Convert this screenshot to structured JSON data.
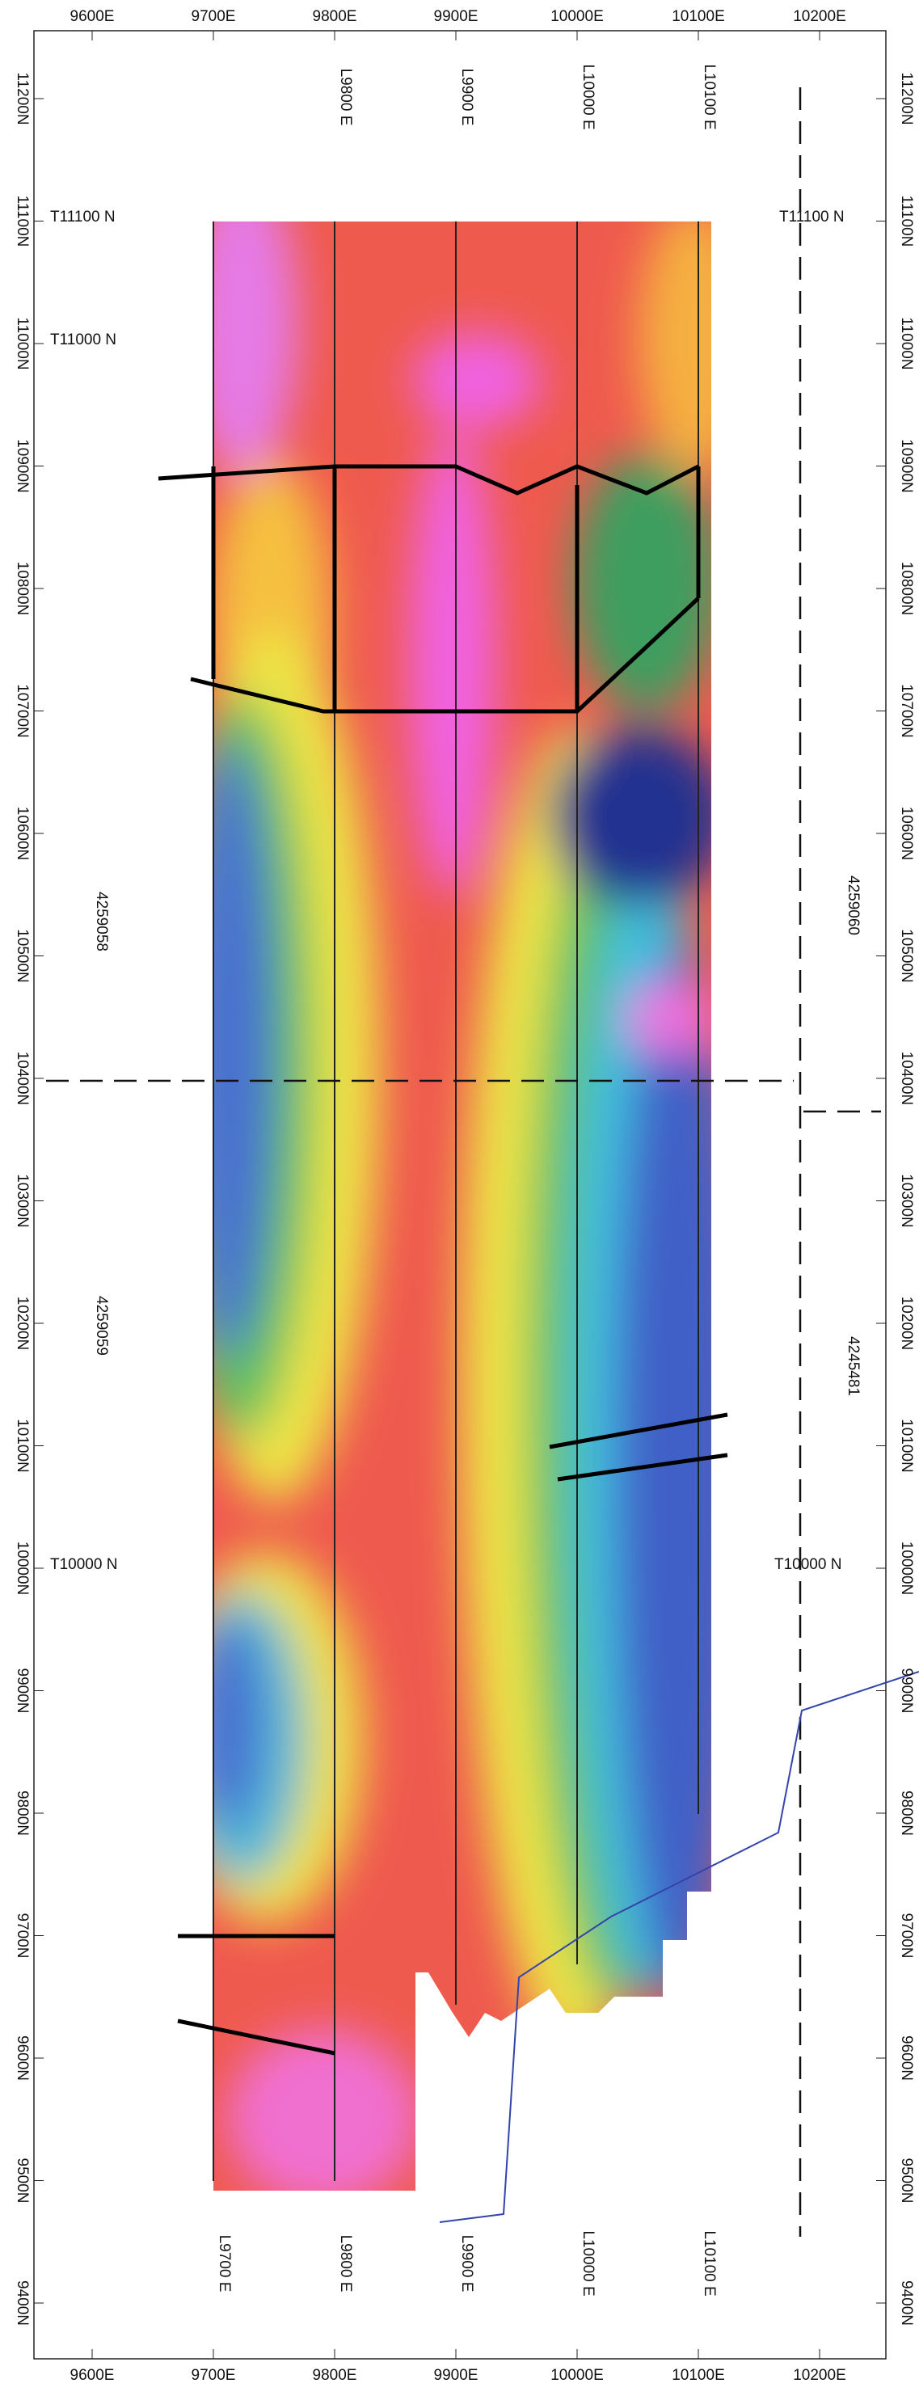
{
  "map": {
    "easting_labels": [
      "9600E",
      "9700E",
      "9800E",
      "9900E",
      "10000E",
      "10100E",
      "10200E"
    ],
    "northing_labels": [
      "11200N",
      "11100N",
      "11000N",
      "10900N",
      "10800N",
      "10700N",
      "10600N",
      "10500N",
      "10400N",
      "10300N",
      "10200N",
      "10100N",
      "10000N",
      "9900N",
      "9800N",
      "9700N",
      "9600N",
      "9500N",
      "9400N"
    ],
    "line_labels_top": [
      "L9800 E",
      "L9900 E",
      "L10000 E",
      "L10100 E"
    ],
    "line_labels_bottom": [
      "L9700 E",
      "L9800 E",
      "L9900 E",
      "L10000 E",
      "L10100 E"
    ],
    "tie_lines": [
      "T11100 N",
      "T11000 N",
      "T10000 N"
    ],
    "claims": [
      "4259058",
      "4259059",
      "4259060",
      "4245481"
    ]
  }
}
